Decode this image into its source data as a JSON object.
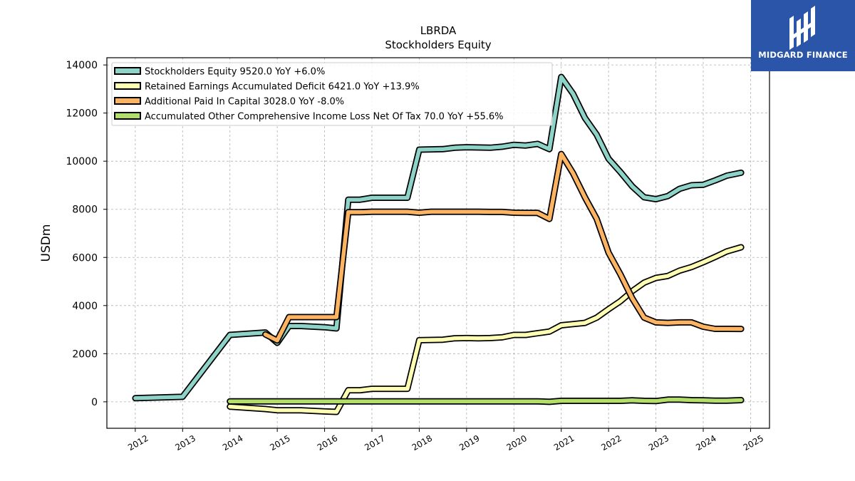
{
  "chart_data": {
    "type": "line",
    "title": "LBRDA",
    "subtitle": "Stockholders  Equity",
    "ylabel": "USDm",
    "xlabel": "",
    "xlim": [
      2011.4,
      2025.4
    ],
    "ylim": [
      -1100,
      14300
    ],
    "x_ticks": [
      2012,
      2013,
      2014,
      2015,
      2016,
      2017,
      2018,
      2019,
      2020,
      2021,
      2022,
      2023,
      2024,
      2025
    ],
    "x_tick_labels": [
      "2012",
      "2013",
      "2014",
      "2015",
      "2016",
      "2017",
      "2018",
      "2019",
      "2020",
      "2021",
      "2022",
      "2023",
      "2024",
      "2025"
    ],
    "y_ticks": [
      0,
      2000,
      4000,
      6000,
      8000,
      10000,
      12000,
      14000
    ],
    "y_tick_labels": [
      "0",
      "2000",
      "4000",
      "6000",
      "8000",
      "10000",
      "12000",
      "14000"
    ],
    "grid": true,
    "legend_position": "top-left",
    "series": [
      {
        "name": "Stockholders Equity  9520.0 YoY +6.0%",
        "color": "#8dd3c7",
        "points": [
          [
            2012.0,
            150
          ],
          [
            2013.0,
            210
          ],
          [
            2014.0,
            2780
          ],
          [
            2014.75,
            2880
          ],
          [
            2015.0,
            2450
          ],
          [
            2015.25,
            3150
          ],
          [
            2015.5,
            3150
          ],
          [
            2016.0,
            3100
          ],
          [
            2016.25,
            3050
          ],
          [
            2016.5,
            8400
          ],
          [
            2016.75,
            8400
          ],
          [
            2017.0,
            8480
          ],
          [
            2017.5,
            8480
          ],
          [
            2017.75,
            8480
          ],
          [
            2018.0,
            10480
          ],
          [
            2018.5,
            10500
          ],
          [
            2018.75,
            10560
          ],
          [
            2019.0,
            10580
          ],
          [
            2019.5,
            10560
          ],
          [
            2019.75,
            10600
          ],
          [
            2020.0,
            10680
          ],
          [
            2020.25,
            10650
          ],
          [
            2020.5,
            10720
          ],
          [
            2020.75,
            10500
          ],
          [
            2021.0,
            13500
          ],
          [
            2021.25,
            12800
          ],
          [
            2021.5,
            11800
          ],
          [
            2021.75,
            11100
          ],
          [
            2022.0,
            10100
          ],
          [
            2022.25,
            9550
          ],
          [
            2022.5,
            8950
          ],
          [
            2022.75,
            8500
          ],
          [
            2023.0,
            8420
          ],
          [
            2023.25,
            8550
          ],
          [
            2023.5,
            8850
          ],
          [
            2023.75,
            9000
          ],
          [
            2024.0,
            9020
          ],
          [
            2024.25,
            9200
          ],
          [
            2024.5,
            9400
          ],
          [
            2024.8,
            9520
          ]
        ]
      },
      {
        "name": "Retained Earnings Accumulated Deficit  6421.0 YoY +13.9%",
        "color": "#ffffb3",
        "points": [
          [
            2014.0,
            -200
          ],
          [
            2014.75,
            -300
          ],
          [
            2015.0,
            -350
          ],
          [
            2015.5,
            -350
          ],
          [
            2016.0,
            -400
          ],
          [
            2016.25,
            -420
          ],
          [
            2016.5,
            480
          ],
          [
            2016.75,
            480
          ],
          [
            2017.0,
            540
          ],
          [
            2017.5,
            540
          ],
          [
            2017.75,
            540
          ],
          [
            2018.0,
            2560
          ],
          [
            2018.5,
            2580
          ],
          [
            2018.75,
            2640
          ],
          [
            2019.0,
            2650
          ],
          [
            2019.25,
            2640
          ],
          [
            2019.5,
            2650
          ],
          [
            2019.75,
            2680
          ],
          [
            2020.0,
            2780
          ],
          [
            2020.25,
            2780
          ],
          [
            2020.5,
            2850
          ],
          [
            2020.75,
            2920
          ],
          [
            2021.0,
            3180
          ],
          [
            2021.25,
            3230
          ],
          [
            2021.5,
            3280
          ],
          [
            2021.75,
            3500
          ],
          [
            2022.0,
            3850
          ],
          [
            2022.25,
            4180
          ],
          [
            2022.5,
            4600
          ],
          [
            2022.75,
            4950
          ],
          [
            2023.0,
            5150
          ],
          [
            2023.25,
            5230
          ],
          [
            2023.5,
            5450
          ],
          [
            2023.75,
            5600
          ],
          [
            2024.0,
            5800
          ],
          [
            2024.25,
            6020
          ],
          [
            2024.5,
            6250
          ],
          [
            2024.8,
            6421
          ]
        ]
      },
      {
        "name": "Additional Paid In Capital  3028.0 YoY -8.0%",
        "color": "#fdb462",
        "points": [
          [
            2014.75,
            2800
          ],
          [
            2015.0,
            2550
          ],
          [
            2015.25,
            3520
          ],
          [
            2015.5,
            3520
          ],
          [
            2016.0,
            3520
          ],
          [
            2016.25,
            3520
          ],
          [
            2016.5,
            7880
          ],
          [
            2016.75,
            7880
          ],
          [
            2017.0,
            7900
          ],
          [
            2017.5,
            7900
          ],
          [
            2017.75,
            7900
          ],
          [
            2018.0,
            7860
          ],
          [
            2018.25,
            7900
          ],
          [
            2018.5,
            7900
          ],
          [
            2018.75,
            7900
          ],
          [
            2019.0,
            7900
          ],
          [
            2019.25,
            7900
          ],
          [
            2019.5,
            7890
          ],
          [
            2019.75,
            7890
          ],
          [
            2020.0,
            7860
          ],
          [
            2020.25,
            7850
          ],
          [
            2020.5,
            7850
          ],
          [
            2020.75,
            7600
          ],
          [
            2021.0,
            10300
          ],
          [
            2021.25,
            9500
          ],
          [
            2021.5,
            8500
          ],
          [
            2021.75,
            7600
          ],
          [
            2022.0,
            6200
          ],
          [
            2022.25,
            5300
          ],
          [
            2022.5,
            4300
          ],
          [
            2022.75,
            3500
          ],
          [
            2023.0,
            3300
          ],
          [
            2023.25,
            3280
          ],
          [
            2023.5,
            3300
          ],
          [
            2023.75,
            3300
          ],
          [
            2024.0,
            3120
          ],
          [
            2024.25,
            3030
          ],
          [
            2024.5,
            3030
          ],
          [
            2024.8,
            3028
          ]
        ]
      },
      {
        "name": "Accumulated Other Comprehensive Income Loss Net Of Tax  70.0 YoY +55.6%",
        "color": "#b3de69",
        "points": [
          [
            2014.0,
            20
          ],
          [
            2015.0,
            20
          ],
          [
            2016.0,
            20
          ],
          [
            2017.0,
            20
          ],
          [
            2018.0,
            20
          ],
          [
            2019.0,
            20
          ],
          [
            2020.0,
            20
          ],
          [
            2020.5,
            20
          ],
          [
            2020.75,
            0
          ],
          [
            2021.0,
            40
          ],
          [
            2021.5,
            40
          ],
          [
            2022.0,
            40
          ],
          [
            2022.25,
            40
          ],
          [
            2022.5,
            60
          ],
          [
            2022.75,
            40
          ],
          [
            2023.0,
            30
          ],
          [
            2023.25,
            90
          ],
          [
            2023.5,
            90
          ],
          [
            2023.75,
            70
          ],
          [
            2024.0,
            60
          ],
          [
            2024.25,
            50
          ],
          [
            2024.5,
            50
          ],
          [
            2024.8,
            70
          ]
        ]
      }
    ]
  },
  "logo": {
    "text": "MIDGARD FINANCE",
    "icon": "midgard-logo-icon"
  }
}
